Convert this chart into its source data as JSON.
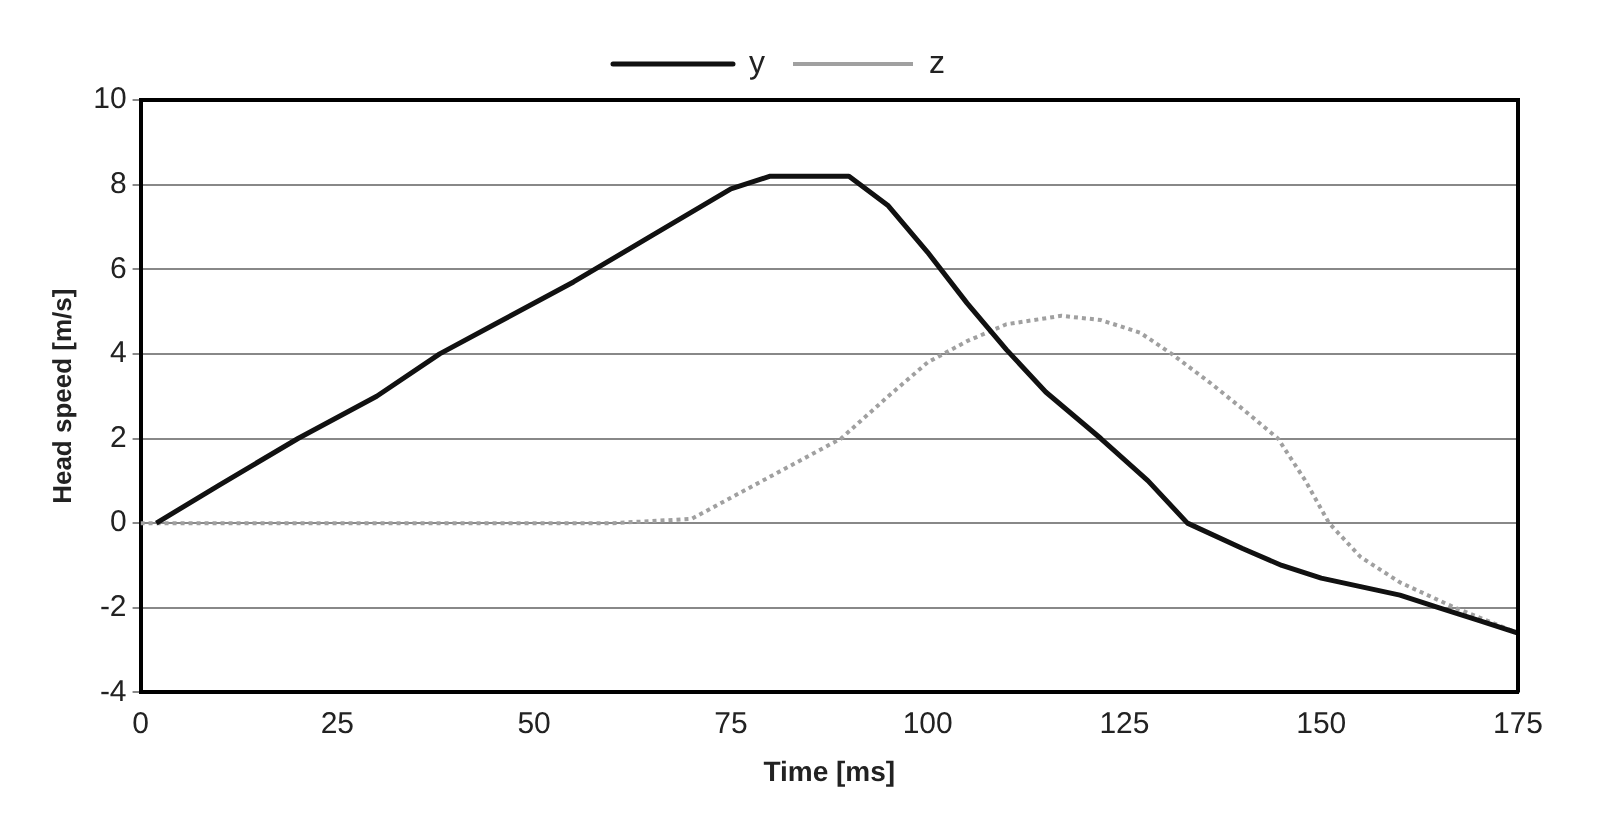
{
  "chart_data": {
    "type": "line",
    "xlabel": "Time [ms]",
    "ylabel": "Head speed [m/s]",
    "xlim": [
      0,
      175
    ],
    "xticks": [
      0,
      25,
      50,
      75,
      100,
      125,
      150,
      175
    ],
    "ylim": [
      -4,
      10
    ],
    "yticks": [
      -4,
      -2,
      0,
      2,
      4,
      6,
      8,
      10
    ],
    "grid": "y",
    "legend": "top",
    "marker": "none",
    "series": [
      {
        "name": "y",
        "color": "#111111",
        "line_style": "solid",
        "x": [
          2,
          10,
          20,
          30,
          38,
          45,
          55,
          65,
          75,
          80,
          90,
          95,
          100,
          105,
          110,
          115,
          122,
          128,
          133,
          140,
          145,
          150,
          155,
          160,
          165,
          170,
          175
        ],
        "values": [
          0,
          0.9,
          2,
          3,
          4,
          4.7,
          5.7,
          6.8,
          7.9,
          8.2,
          8.2,
          7.5,
          6.4,
          5.2,
          4.1,
          3.1,
          2,
          1,
          0,
          -0.6,
          -1,
          -1.3,
          -1.5,
          -1.7,
          -2,
          -2.3,
          -2.6
        ]
      },
      {
        "name": "z",
        "color": "#a0a0a0",
        "line_style": "dotted",
        "x": [
          0,
          20,
          40,
          60,
          70,
          75,
          80,
          85,
          89,
          95,
          100,
          105,
          110,
          117,
          122,
          127,
          131,
          136,
          140,
          144.5,
          148,
          151,
          155,
          160,
          167,
          175
        ],
        "values": [
          0,
          0,
          0,
          0,
          0.1,
          0.6,
          1.1,
          1.6,
          2,
          3,
          3.8,
          4.3,
          4.7,
          4.9,
          4.8,
          4.5,
          4,
          3.3,
          2.7,
          2,
          1,
          0,
          -0.8,
          -1.4,
          -2,
          -2.6
        ]
      }
    ]
  }
}
